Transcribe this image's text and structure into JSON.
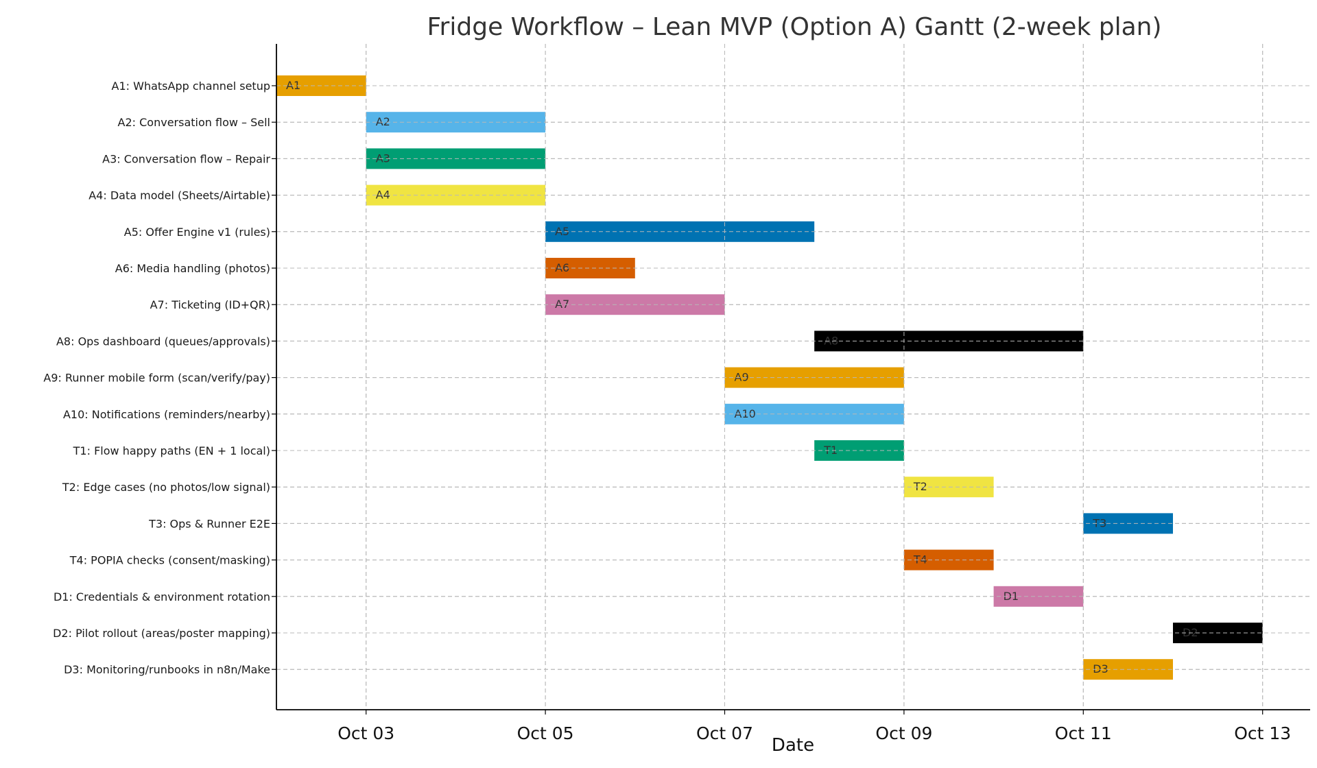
{
  "chart_data": {
    "type": "gantt",
    "title": "Fridge Workflow – Lean MVP (Option A) Gantt (2-week plan)",
    "xlabel": "Date",
    "ylabel": "",
    "xlim": [
      "Oct 02",
      "Oct 13.7"
    ],
    "x_ticks": [
      "Oct 03",
      "Oct 05",
      "Oct 07",
      "Oct 09",
      "Oct 11",
      "Oct 13"
    ],
    "grid": true,
    "tasks": [
      {
        "label": "A1: WhatsApp channel setup",
        "id": "A1",
        "start": "Oct 02",
        "end": "Oct 03",
        "color": "#E69F00"
      },
      {
        "label": "A2: Conversation flow – Sell",
        "id": "A2",
        "start": "Oct 03",
        "end": "Oct 05",
        "color": "#56B4E9"
      },
      {
        "label": "A3: Conversation flow – Repair",
        "id": "A3",
        "start": "Oct 03",
        "end": "Oct 05",
        "color": "#009E73"
      },
      {
        "label": "A4: Data model (Sheets/Airtable)",
        "id": "A4",
        "start": "Oct 03",
        "end": "Oct 05",
        "color": "#F0E442"
      },
      {
        "label": "A5: Offer Engine v1 (rules)",
        "id": "A5",
        "start": "Oct 05",
        "end": "Oct 08",
        "color": "#0072B2"
      },
      {
        "label": "A6: Media handling (photos)",
        "id": "A6",
        "start": "Oct 05",
        "end": "Oct 06",
        "color": "#D55E00"
      },
      {
        "label": "A7: Ticketing (ID+QR)",
        "id": "A7",
        "start": "Oct 05",
        "end": "Oct 07",
        "color": "#CC79A7"
      },
      {
        "label": "A8: Ops dashboard (queues/approvals)",
        "id": "A8",
        "start": "Oct 08",
        "end": "Oct 11",
        "color": "#000000"
      },
      {
        "label": "A9: Runner mobile form (scan/verify/pay)",
        "id": "A9",
        "start": "Oct 07",
        "end": "Oct 09",
        "color": "#E69F00"
      },
      {
        "label": "A10: Notifications (reminders/nearby)",
        "id": "A10",
        "start": "Oct 07",
        "end": "Oct 09",
        "color": "#56B4E9"
      },
      {
        "label": "T1: Flow happy paths (EN + 1 local)",
        "id": "T1",
        "start": "Oct 08",
        "end": "Oct 09",
        "color": "#009E73"
      },
      {
        "label": "T2: Edge cases (no photos/low signal)",
        "id": "T2",
        "start": "Oct 09",
        "end": "Oct 10",
        "color": "#F0E442"
      },
      {
        "label": "T3: Ops & Runner E2E",
        "id": "T3",
        "start": "Oct 11",
        "end": "Oct 12",
        "color": "#0072B2"
      },
      {
        "label": "T4: POPIA checks (consent/masking)",
        "id": "T4",
        "start": "Oct 09",
        "end": "Oct 10",
        "color": "#D55E00"
      },
      {
        "label": "D1: Credentials & environment rotation",
        "id": "D1",
        "start": "Oct 10",
        "end": "Oct 11",
        "color": "#CC79A7"
      },
      {
        "label": "D2: Pilot rollout (areas/poster mapping)",
        "id": "D2",
        "start": "Oct 12",
        "end": "Oct 13",
        "color": "#000000"
      },
      {
        "label": "D3: Monitoring/runbooks in n8n/Make",
        "id": "D3",
        "start": "Oct 11",
        "end": "Oct 12",
        "color": "#E69F00"
      }
    ]
  }
}
